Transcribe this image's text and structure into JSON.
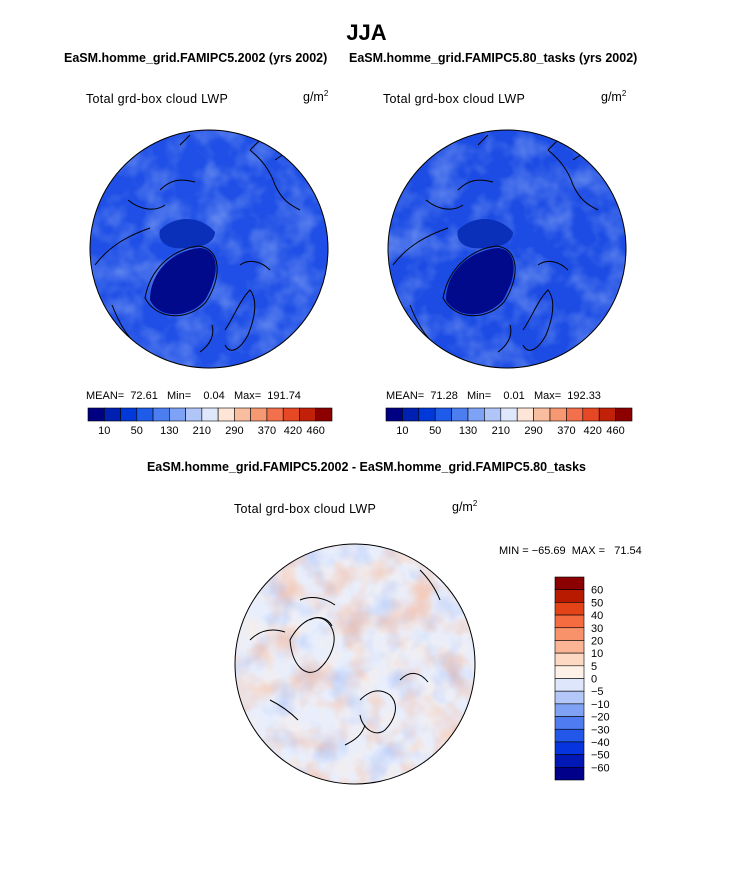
{
  "page": {
    "title": "JJA",
    "left_case_title": "EaSM.homme_grid.FAMIPC5.2002 (yrs 2002)",
    "right_case_title": "EaSM.homme_grid.FAMIPC5.80_tasks (yrs 2002)",
    "diff_title": "EaSM.homme_grid.FAMIPC5.2002 - EaSM.homme_grid.FAMIPC5.80_tasks"
  },
  "colors": {
    "abs_scale": [
      "#000083",
      "#0020b2",
      "#0138d9",
      "#1f5be9",
      "#4d7ef0",
      "#7ea2f5",
      "#b0c6f8",
      "#dfe7fb",
      "#fde6d8",
      "#f9bd9f",
      "#f69871",
      "#f2714c",
      "#e64724",
      "#c12108",
      "#8d0000"
    ],
    "diff_scale": [
      "#00008b",
      "#0018b5",
      "#0634de",
      "#2357ea",
      "#4f7cf1",
      "#80a2f4",
      "#b3c8f8",
      "#dde6fb",
      "#fdf1e8",
      "#fdd8c2",
      "#fbb595",
      "#f8926a",
      "#f46c3f",
      "#e24418",
      "#b81a00",
      "#8b0000"
    ],
    "map_bg_left": "#1f4fe6",
    "map_bg_right": "#1c4ce4",
    "coast": "#000000"
  },
  "chart_data": [
    {
      "type": "heatmap",
      "projection": "polar stereographic (north pole)",
      "title": "Total grd-box cloud LWP",
      "units_base": "g/m",
      "units_exp": "2",
      "case": "EaSM.homme_grid.FAMIPC5.2002 (yrs 2002)",
      "stats_text": "MEAN=  72.61   Min=    0.04   Max=  191.74",
      "mean": 72.61,
      "min": 0.04,
      "max": 191.74,
      "colorbar": {
        "orientation": "horizontal",
        "tick_labels": [
          "10",
          "50",
          "130",
          "210",
          "290",
          "370",
          "420",
          "460"
        ]
      }
    },
    {
      "type": "heatmap",
      "projection": "polar stereographic (north pole)",
      "title": "Total grd-box cloud LWP",
      "units_base": "g/m",
      "units_exp": "2",
      "case": "EaSM.homme_grid.FAMIPC5.80_tasks (yrs 2002)",
      "stats_text": "MEAN=  71.28   Min=    0.01   Max=  192.33",
      "mean": 71.28,
      "min": 0.01,
      "max": 192.33,
      "colorbar": {
        "orientation": "horizontal",
        "tick_labels": [
          "10",
          "50",
          "130",
          "210",
          "290",
          "370",
          "420",
          "460"
        ]
      }
    },
    {
      "type": "heatmap",
      "projection": "polar stereographic (north pole)",
      "title": "Total grd-box cloud LWP",
      "units_base": "g/m",
      "units_exp": "2",
      "case": "EaSM.homme_grid.FAMIPC5.2002 - EaSM.homme_grid.FAMIPC5.80_tasks",
      "stats_text": "MIN = −65.69  MAX =   71.54",
      "min": -65.69,
      "max": 71.54,
      "colorbar": {
        "orientation": "vertical",
        "tick_labels": [
          "60",
          "50",
          "40",
          "30",
          "20",
          "10",
          "5",
          "0",
          "−5",
          "−10",
          "−20",
          "−30",
          "−40",
          "−50",
          "−60"
        ]
      }
    }
  ]
}
